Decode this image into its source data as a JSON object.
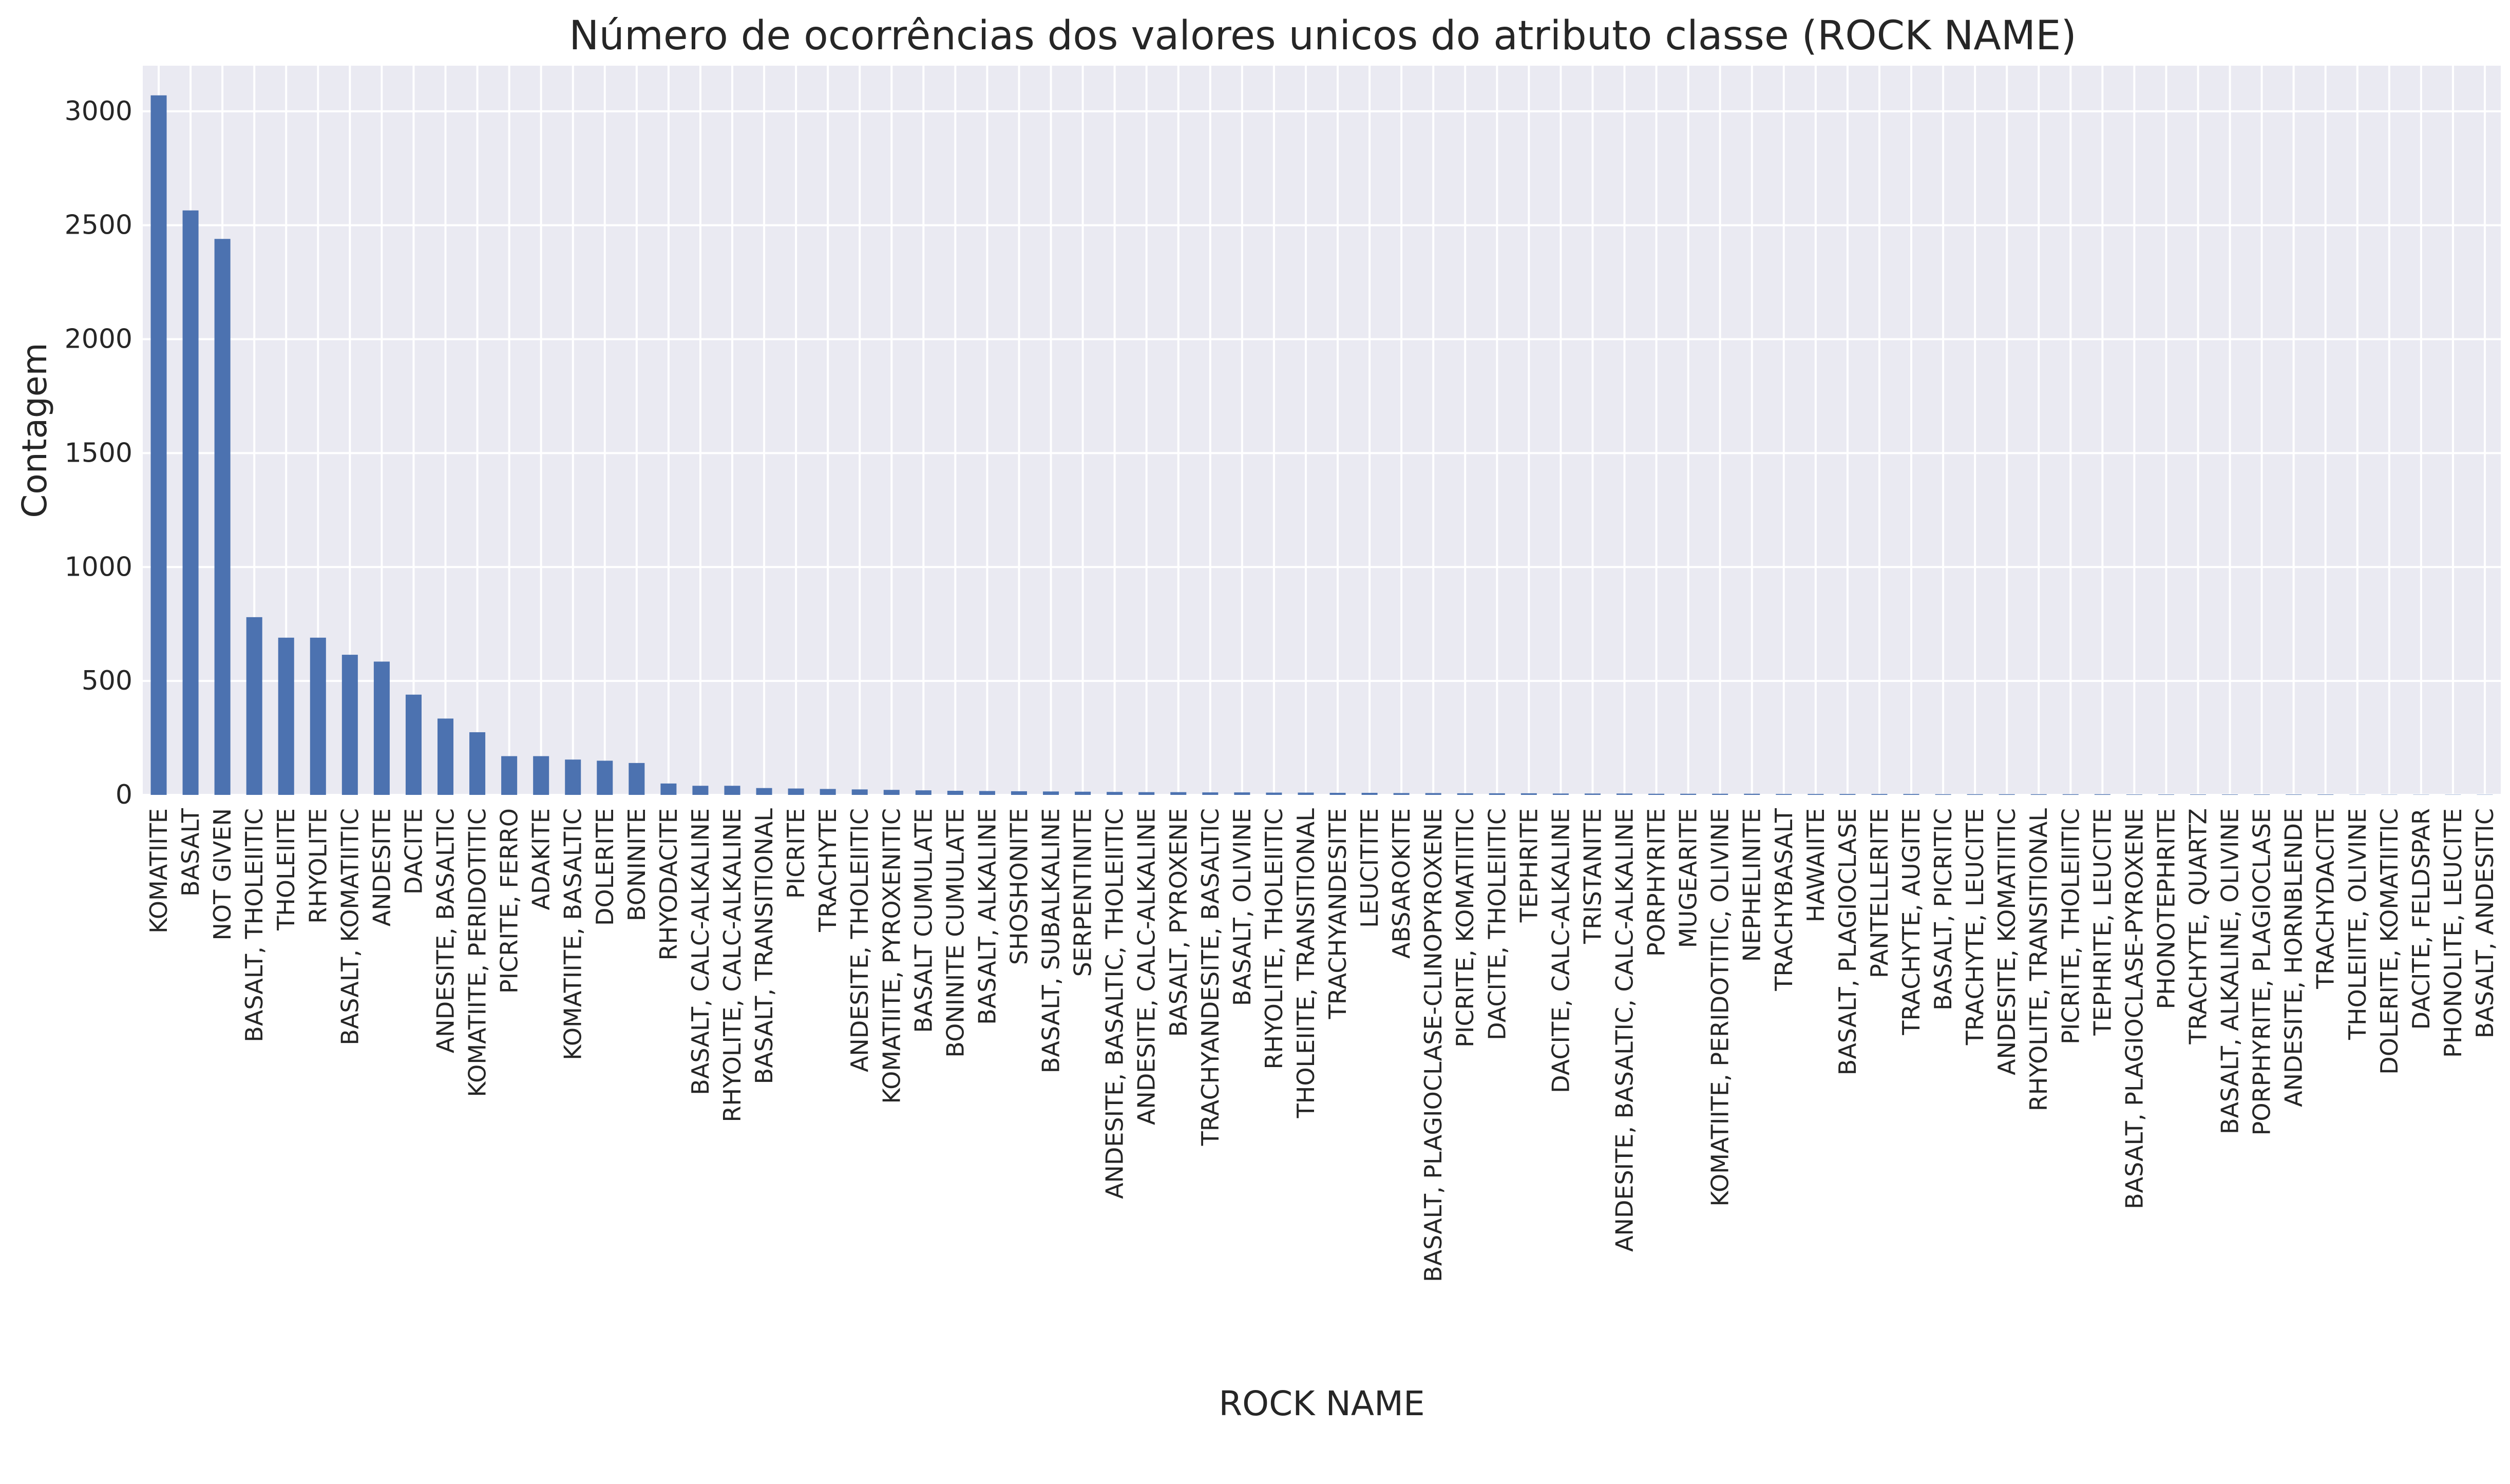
{
  "chart_data": {
    "type": "bar",
    "title": "Número de ocorrências dos valores unicos do atributo classe (ROCK NAME)",
    "xlabel": "ROCK NAME",
    "ylabel": "Contagem",
    "ylim": [
      0,
      3200
    ],
    "yticks": [
      0,
      500,
      1000,
      1500,
      2000,
      2500,
      3000
    ],
    "ytick_labels": [
      "0",
      "500",
      "1000",
      "1500",
      "2000",
      "2500",
      "3000"
    ],
    "grid": true,
    "legend": "none",
    "bar_color": "#4c72b0",
    "background_color": "#eaeaf2",
    "grid_color": "#ffffff",
    "categories": [
      "KOMATIITE",
      "BASALT",
      "NOT GIVEN",
      "BASALT, THOLEIITIC",
      "THOLEIITE",
      "RHYOLITE",
      "BASALT, KOMATIITIC",
      "ANDESITE",
      "DACITE",
      "ANDESITE, BASALTIC",
      "KOMATIITE, PERIDOTITIC",
      "PICRITE, FERRO",
      "ADAKITE",
      "KOMATIITE, BASALTIC",
      "DOLERITE",
      "BONINITE",
      "RHYODACITE",
      "BASALT, CALC-ALKALINE",
      "RHYOLITE, CALC-ALKALINE",
      "BASALT, TRANSITIONAL",
      "PICRITE",
      "TRACHYTE",
      "ANDESITE, THOLEIITIC",
      "KOMATIITE, PYROXENITIC",
      "BASALT CUMULATE",
      "BONINITE CUMULATE",
      "BASALT, ALKALINE",
      "SHOSHONITE",
      "BASALT, SUBALKALINE",
      "SERPENTINITE",
      "ANDESITE, BASALTIC, THOLEIITIC",
      "ANDESITE, CALC-ALKALINE",
      "BASALT, PYROXENE",
      "TRACHYANDESITE, BASALTIC",
      "BASALT, OLIVINE",
      "RHYOLITE, THOLEIITIC",
      "THOLEIITE, TRANSITIONAL",
      "TRACHYANDESITE",
      "LEUCITITE",
      "ABSAROKITE",
      "BASALT, PLAGIOCLASE-CLINOPYROXENE",
      "PICRITE, KOMATIITIC",
      "DACITE, THOLEIITIC",
      "TEPHRITE",
      "DACITE, CALC-ALKALINE",
      "TRISTANITE",
      "ANDESITE, BASALTIC, CALC-ALKALINE",
      "PORPHYRITE",
      "MUGEARITE",
      "KOMATIITE, PERIDOTITIC, OLIVINE",
      "NEPHELINITE",
      "TRACHYBASALT",
      "HAWAIITE",
      "BASALT, PLAGIOCLASE",
      "PANTELLERITE",
      "TRACHYTE, AUGITE",
      "BASALT, PICRITIC",
      "TRACHYTE, LEUCITE",
      "ANDESITE, KOMATIITIC",
      "RHYOLITE, TRANSITIONAL",
      "PICRITE, THOLEIITIC",
      "TEPHRITE, LEUCITE",
      "BASALT, PLAGIOCLASE-PYROXENE",
      "PHONOTEPHRITE",
      "TRACHYTE, QUARTZ",
      "BASALT, ALKALINE, OLIVINE",
      "PORPHYRITE, PLAGIOCLASE",
      "ANDESITE, HORNBLENDE",
      "TRACHYDACITE",
      "THOLEIITE, OLIVINE",
      "DOLERITE, KOMATIITIC",
      "DACITE, FELDSPAR",
      "PHONOLITE, LEUCITE",
      "BASALT, ANDESITIC"
    ],
    "values": [
      3070,
      2565,
      2440,
      780,
      690,
      690,
      615,
      585,
      440,
      335,
      275,
      170,
      170,
      155,
      150,
      140,
      50,
      40,
      40,
      30,
      28,
      26,
      24,
      22,
      20,
      18,
      17,
      16,
      15,
      14,
      13,
      12,
      12,
      11,
      11,
      10,
      10,
      9,
      9,
      8,
      8,
      7,
      7,
      7,
      6,
      6,
      6,
      5,
      5,
      5,
      5,
      4,
      4,
      4,
      4,
      4,
      3,
      3,
      3,
      3,
      3,
      3,
      2,
      2,
      2,
      2,
      2,
      2,
      2,
      1,
      1,
      1,
      1,
      1
    ]
  }
}
